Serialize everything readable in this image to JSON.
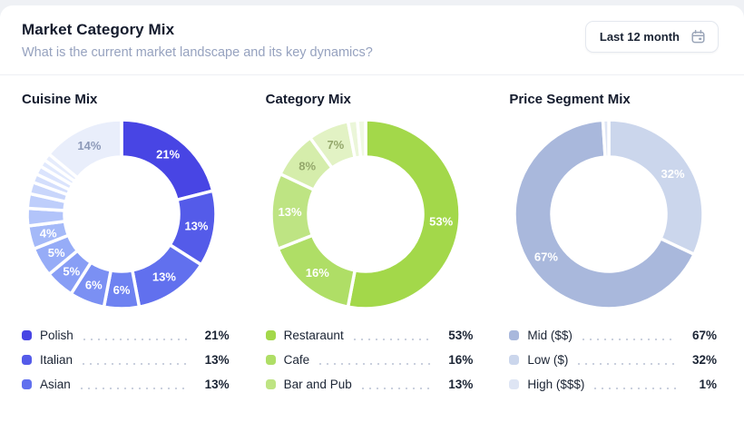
{
  "app": {
    "background": "#EFF1F5",
    "card_background": "#FFFFFF"
  },
  "header": {
    "title": "Market Category Mix",
    "subtitle": "What is the current market landscape and its key dynamics?",
    "date_filter": {
      "label": "Last 12 month",
      "icon": "calendar-icon"
    }
  },
  "chart_data": [
    {
      "type": "donut",
      "title": "Cuisine Mix",
      "start_angle_deg": 0,
      "direction": "clockwise",
      "slices": [
        {
          "label": "Polish",
          "value": 21,
          "display": "21%",
          "color": "#4845E4",
          "labelColor": "#FFFFFF"
        },
        {
          "label": "Italian",
          "value": 13,
          "display": "13%",
          "color": "#545BE9",
          "labelColor": "#FFFFFF"
        },
        {
          "label": "Asian",
          "value": 13,
          "display": "13%",
          "color": "#6170EE",
          "labelColor": "#FFFFFF"
        },
        {
          "label": "",
          "value": 6,
          "display": "6%",
          "color": "#6E82F1",
          "labelColor": "#FFFFFF"
        },
        {
          "label": "",
          "value": 6,
          "display": "6%",
          "color": "#7B90F3",
          "labelColor": "#FFFFFF"
        },
        {
          "label": "",
          "value": 5,
          "display": "5%",
          "color": "#889EF5",
          "labelColor": "#FFFFFF"
        },
        {
          "label": "",
          "value": 5,
          "display": "5%",
          "color": "#96ACF7",
          "labelColor": "#FFFFFF"
        },
        {
          "label": "",
          "value": 4,
          "display": "4%",
          "color": "#A4B9F8",
          "labelColor": "#FFFFFF"
        },
        {
          "label": "",
          "value": 3,
          "display": "",
          "color": "#B2C4FA"
        },
        {
          "label": "",
          "value": 2.5,
          "display": "",
          "color": "#BECEFB"
        },
        {
          "label": "",
          "value": 2,
          "display": "",
          "color": "#C9D6FB"
        },
        {
          "label": "",
          "value": 1.5,
          "display": "",
          "color": "#D3DEFC"
        },
        {
          "label": "",
          "value": 1.5,
          "display": "",
          "color": "#DBE4FD"
        },
        {
          "label": "",
          "value": 1.25,
          "display": "",
          "color": "#E1E9FD"
        },
        {
          "label": "",
          "value": 1.25,
          "display": "",
          "color": "#E6ECFC"
        },
        {
          "label": "",
          "value": 14,
          "display": "14%",
          "color": "#E9EEFB",
          "labelColor": "#8C99B8"
        }
      ],
      "legend": [
        {
          "label": "Polish",
          "value": "21%",
          "color": "#4845E4"
        },
        {
          "label": "Italian",
          "value": "13%",
          "color": "#545BE9"
        },
        {
          "label": "Asian",
          "value": "13%",
          "color": "#6170EE"
        }
      ]
    },
    {
      "type": "donut",
      "title": "Category Mix",
      "start_angle_deg": 0,
      "direction": "clockwise",
      "slices": [
        {
          "label": "Restaraunt",
          "value": 53,
          "display": "53%",
          "color": "#A3D84A",
          "labelColor": "#FFFFFF"
        },
        {
          "label": "Cafe",
          "value": 16,
          "display": "16%",
          "color": "#AFDE66",
          "labelColor": "#FFFFFF"
        },
        {
          "label": "Bar and Pub",
          "value": 13,
          "display": "13%",
          "color": "#BEE483",
          "labelColor": "#FFFFFF"
        },
        {
          "label": "",
          "value": 8,
          "display": "8%",
          "color": "#D5EDAB",
          "labelColor": "#94A76B"
        },
        {
          "label": "",
          "value": 7,
          "display": "7%",
          "color": "#E2F2C4",
          "labelColor": "#94A76B"
        },
        {
          "label": "",
          "value": 1.6,
          "display": "",
          "color": "#EBF6D9"
        },
        {
          "label": "",
          "value": 1.4,
          "display": "",
          "color": "#F0F9E3"
        }
      ],
      "legend": [
        {
          "label": "Restaraunt",
          "value": "53%",
          "color": "#A3D84A"
        },
        {
          "label": "Cafe",
          "value": "16%",
          "color": "#AFDE66"
        },
        {
          "label": "Bar and Pub",
          "value": "13%",
          "color": "#BEE483"
        }
      ]
    },
    {
      "type": "donut",
      "title": "Price Segment Mix",
      "start_angle_deg": 0,
      "direction": "clockwise",
      "slices": [
        {
          "label": "Low ($)",
          "value": 32,
          "display": "32%",
          "color": "#CBD6EC",
          "labelColor": "#FFFFFF"
        },
        {
          "label": "Mid ($$)",
          "value": 67,
          "display": "67%",
          "color": "#A9B8DC",
          "labelColor": "#FFFFFF"
        },
        {
          "label": "High ($$$)",
          "value": 1,
          "display": "",
          "color": "#DEE5F4"
        }
      ],
      "legend": [
        {
          "label": "Mid ($$)",
          "value": "67%",
          "color": "#A9B8DC"
        },
        {
          "label": "Low ($)",
          "value": "32%",
          "color": "#CBD6EC"
        },
        {
          "label": "High ($$$)",
          "value": "1%",
          "color": "#DEE5F4"
        }
      ]
    }
  ]
}
